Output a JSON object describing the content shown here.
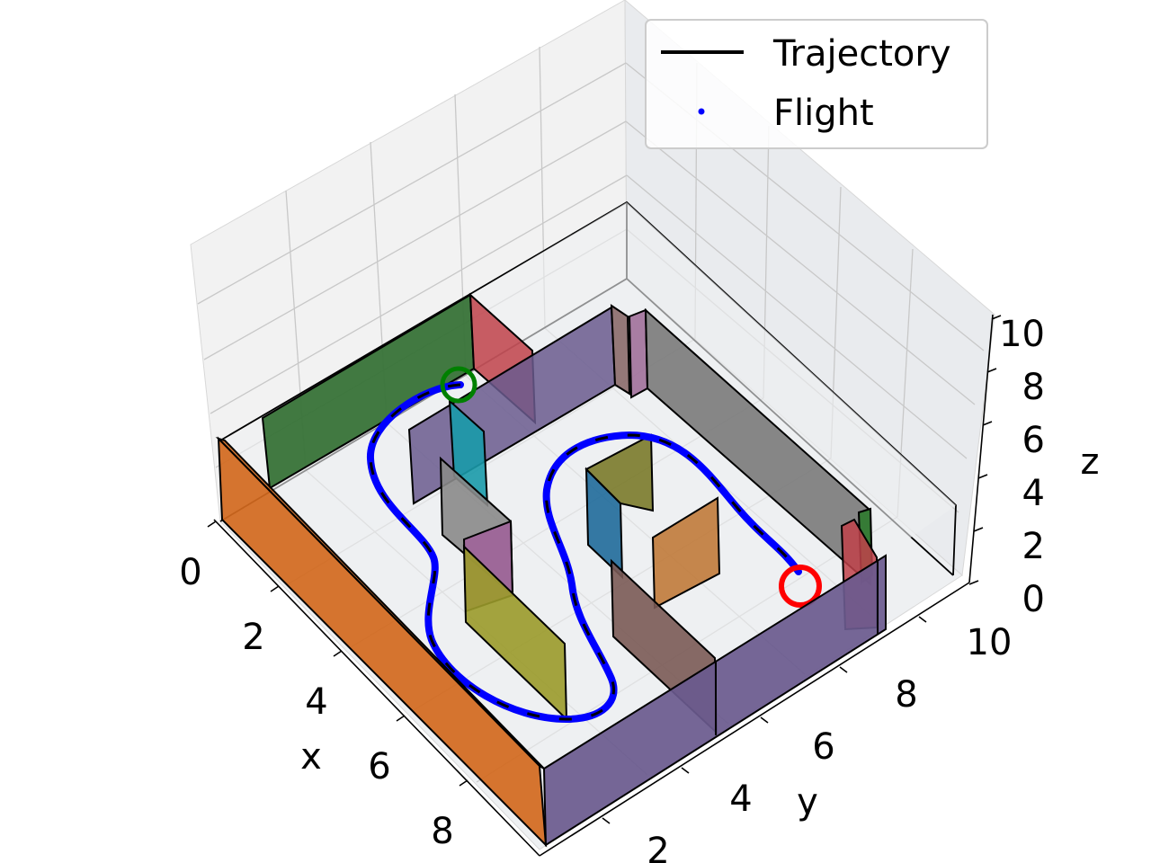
{
  "chart_data": {
    "type": "3d-scene",
    "title": "",
    "xlabel": "x",
    "ylabel": "y",
    "zlabel": "z",
    "x_ticks": [
      "0",
      "2",
      "4",
      "6",
      "8"
    ],
    "y_ticks": [
      "2",
      "4",
      "6",
      "8",
      "10"
    ],
    "z_ticks": [
      "0",
      "2",
      "4",
      "6",
      "8",
      "10"
    ],
    "xlim": [
      0,
      10
    ],
    "ylim": [
      0,
      10
    ],
    "zlim": [
      0,
      10
    ],
    "grid": true,
    "legend": {
      "placement": "top-right",
      "entries": [
        {
          "label": "Trajectory",
          "color": "#000000",
          "style": "line"
        },
        {
          "label": "Flight",
          "color": "#0000ff",
          "style": "point"
        }
      ]
    },
    "start_marker_color": "#008000",
    "goal_marker_color": "#ff0000",
    "series": [
      {
        "name": "Trajectory",
        "color": "#000000",
        "style": "dashed"
      },
      {
        "name": "Flight",
        "color": "#0000ff",
        "style": "solid"
      }
    ],
    "obstacle_colors": [
      "#d2691e",
      "#2e6b2e",
      "#c0424a",
      "#6a5a8e",
      "#8a6a6a",
      "#a0709a",
      "#7a7a7a",
      "#1a9aaa",
      "#8a8a8a",
      "#a0609a",
      "#9a9a2a",
      "#1f6a9a",
      "#7a7a2a",
      "#c07a3a",
      "#7a5a55",
      "#2e7a2e"
    ]
  }
}
